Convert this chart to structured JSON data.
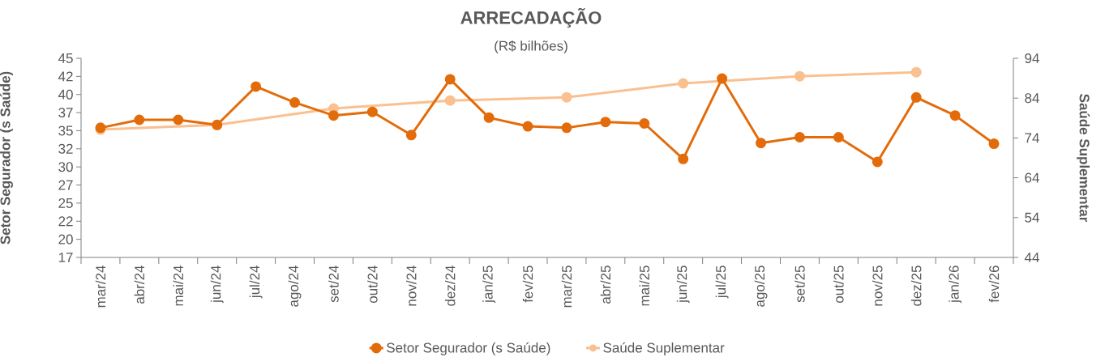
{
  "chart_data": {
    "type": "line",
    "title": "ARRECADAÇÃO",
    "subtitle": "(R$ bilhões)",
    "ylabel": "Setor Segurador (s Saúde)",
    "y2label": "Saúde Suplementar",
    "categories": [
      "mar/24",
      "abr/24",
      "mai/24",
      "jun/24",
      "jul/24",
      "ago/24",
      "set/24",
      "out/24",
      "nov/24",
      "dez/24",
      "jan/25",
      "fev/25",
      "mar/25",
      "abr/25",
      "mai/25",
      "jun/25",
      "jul/25",
      "ago/25",
      "set/25",
      "out/25",
      "nov/25",
      "dez/25",
      "jan/26",
      "fev/26"
    ],
    "series": [
      {
        "name": "Setor Segurador (s Saúde)",
        "color": "#e36c0a",
        "values": [
          35.4,
          36.5,
          36.5,
          35.8,
          41.1,
          38.9,
          37.1,
          37.6,
          34.4,
          42.1,
          36.8,
          35.6,
          35.4,
          36.2,
          36.0,
          31.1,
          42.2,
          33.3,
          34.1,
          34.1,
          30.7,
          39.6,
          37.1,
          33.2
        ]
      },
      {
        "name": "Saúde Suplementar",
        "color": "#fac090",
        "axis": "y2",
        "values": [
          76.1,
          null,
          null,
          77.3,
          null,
          null,
          81.4,
          null,
          null,
          83.4,
          null,
          null,
          84.2,
          null,
          null,
          87.7,
          null,
          null,
          89.5,
          null,
          null,
          90.5,
          null,
          null
        ]
      }
    ],
    "ylim": [
      17.5,
      45
    ],
    "yticks": [
      {
        "value": 17.5,
        "label": "17"
      },
      {
        "value": 20,
        "label": "20"
      },
      {
        "value": 22.5,
        "label": "22"
      },
      {
        "value": 25,
        "label": "25"
      },
      {
        "value": 27.5,
        "label": "27"
      },
      {
        "value": 30,
        "label": "30"
      },
      {
        "value": 32.5,
        "label": "32"
      },
      {
        "value": 35,
        "label": "35"
      },
      {
        "value": 37.5,
        "label": "37"
      },
      {
        "value": 40,
        "label": "40"
      },
      {
        "value": 42.5,
        "label": "42"
      },
      {
        "value": 45,
        "label": "45"
      }
    ],
    "y2lim": [
      44,
      94
    ],
    "y2ticks": [
      44,
      54,
      64,
      74,
      84,
      94
    ],
    "marker": "circle",
    "line_style": "solid",
    "grid": false,
    "legend": "bottom"
  }
}
